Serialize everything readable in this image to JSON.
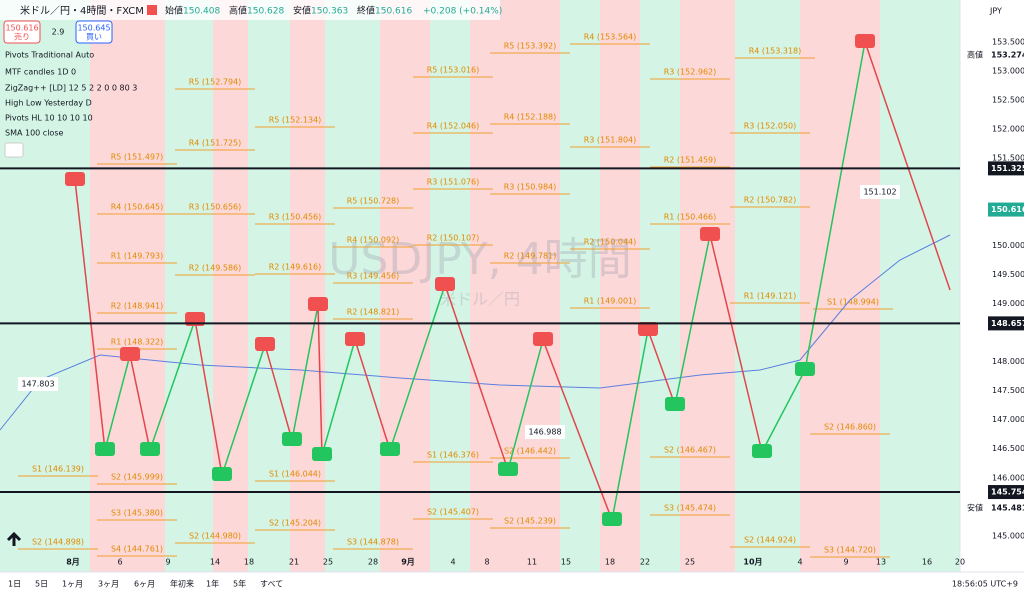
{
  "header": {
    "symbol": "米ドル／円・4時間・FXCM",
    "open_label": "始値",
    "open": "150.408",
    "high_label": "高値",
    "high": "150.628",
    "low_label": "安値",
    "low": "150.363",
    "close_label": "終値",
    "close": "150.616",
    "change": "+0.208 (+0.14%)"
  },
  "trade": {
    "sell_price": "150.616",
    "sell": "売り",
    "spread": "2.9",
    "buy_price": "150.645",
    "buy": "買い"
  },
  "indicators": [
    "Pivots Traditional Auto",
    "MTF candles 1D 0",
    "ZigZag++ [LD] 12 5 2 2 0 0 80 3",
    "High Low Yesterday D",
    "Pivots HL 10 10 10 10",
    "SMA 100 close"
  ],
  "watermark": {
    "title": "USDJPY, 4時間",
    "subtitle": "米ドル／円"
  },
  "price_axis": {
    "currency": "JPY",
    "ticks": [
      "153.500",
      "153.000",
      "152.500",
      "152.000",
      "151.500",
      "150.000",
      "149.500",
      "149.000",
      "148.000",
      "147.500",
      "147.000",
      "146.500",
      "146.000",
      "145.000"
    ],
    "markers": [
      {
        "label": "高値",
        "price": "153.274"
      },
      {
        "price": "151.325"
      },
      {
        "price": "150.616"
      },
      {
        "price": "148.657"
      },
      {
        "price": "145.754"
      },
      {
        "label": "安値",
        "price": "145.481"
      }
    ]
  },
  "time_axis": [
    "8月",
    "6",
    "9",
    "14",
    "18",
    "21",
    "25",
    "28",
    "9月",
    "4",
    "8",
    "11",
    "15",
    "18",
    "22",
    "25",
    "10月",
    "4",
    "9",
    "13",
    "16",
    "20"
  ],
  "pivot_labels": [
    "R4 (153.564)",
    "R5 (153.392)",
    "R4 (153.318)",
    "R5 (153.016)",
    "R3 (152.962)",
    "R5 (152.794)",
    "R4 (152.188)",
    "R5 (152.134)",
    "R4 (152.046)",
    "R3 (152.050)",
    "R4 (151.725)",
    "R3 (151.804)",
    "R5 (151.497)",
    "R2 (151.459)",
    "R3 (151.076)",
    "R3 (150.984)",
    "R2 (150.782)",
    "R4 (150.645)",
    "R3 (150.656)",
    "R5 (150.728)",
    "R3 (150.456)",
    "R1 (150.466)",
    "R4 (150.092)",
    "R2 (150.107)",
    "R2 (150.044)",
    "R1 (149.793)",
    "R2 (149.586)",
    "R2 (149.616)",
    "R3 (149.456)",
    "R2 (149.781)",
    "R1 (149.121)",
    "R1 (149.001)",
    "S1 (148.994)",
    "R2 (148.941)",
    "R2 (148.821)",
    "R1 (148.322)",
    "S2 (146.860)",
    "S1 (146.376)",
    "S2 (146.442)",
    "S2 (146.467)",
    "S1 (146.139)",
    "S2 (145.999)",
    "S1 (146.044)",
    "S3 (145.380)",
    "S2 (145.407)",
    "S2 (145.239)",
    "S3 (145.474)",
    "S2 (144.898)",
    "S2 (144.980)",
    "S2 (145.204)",
    "S3 (144.878)",
    "S2 (144.924)",
    "S4 (144.761)",
    "S3 (144.720)"
  ],
  "value_labels": [
    "147.803",
    "146.988",
    "151.102"
  ],
  "toolbar": {
    "ranges": [
      "1日",
      "5日",
      "1ヶ月",
      "3ヶ月",
      "6ヶ月",
      "年初来",
      "1年",
      "5年",
      "すべて"
    ],
    "clock": "18:56:05 UTC+9"
  }
}
